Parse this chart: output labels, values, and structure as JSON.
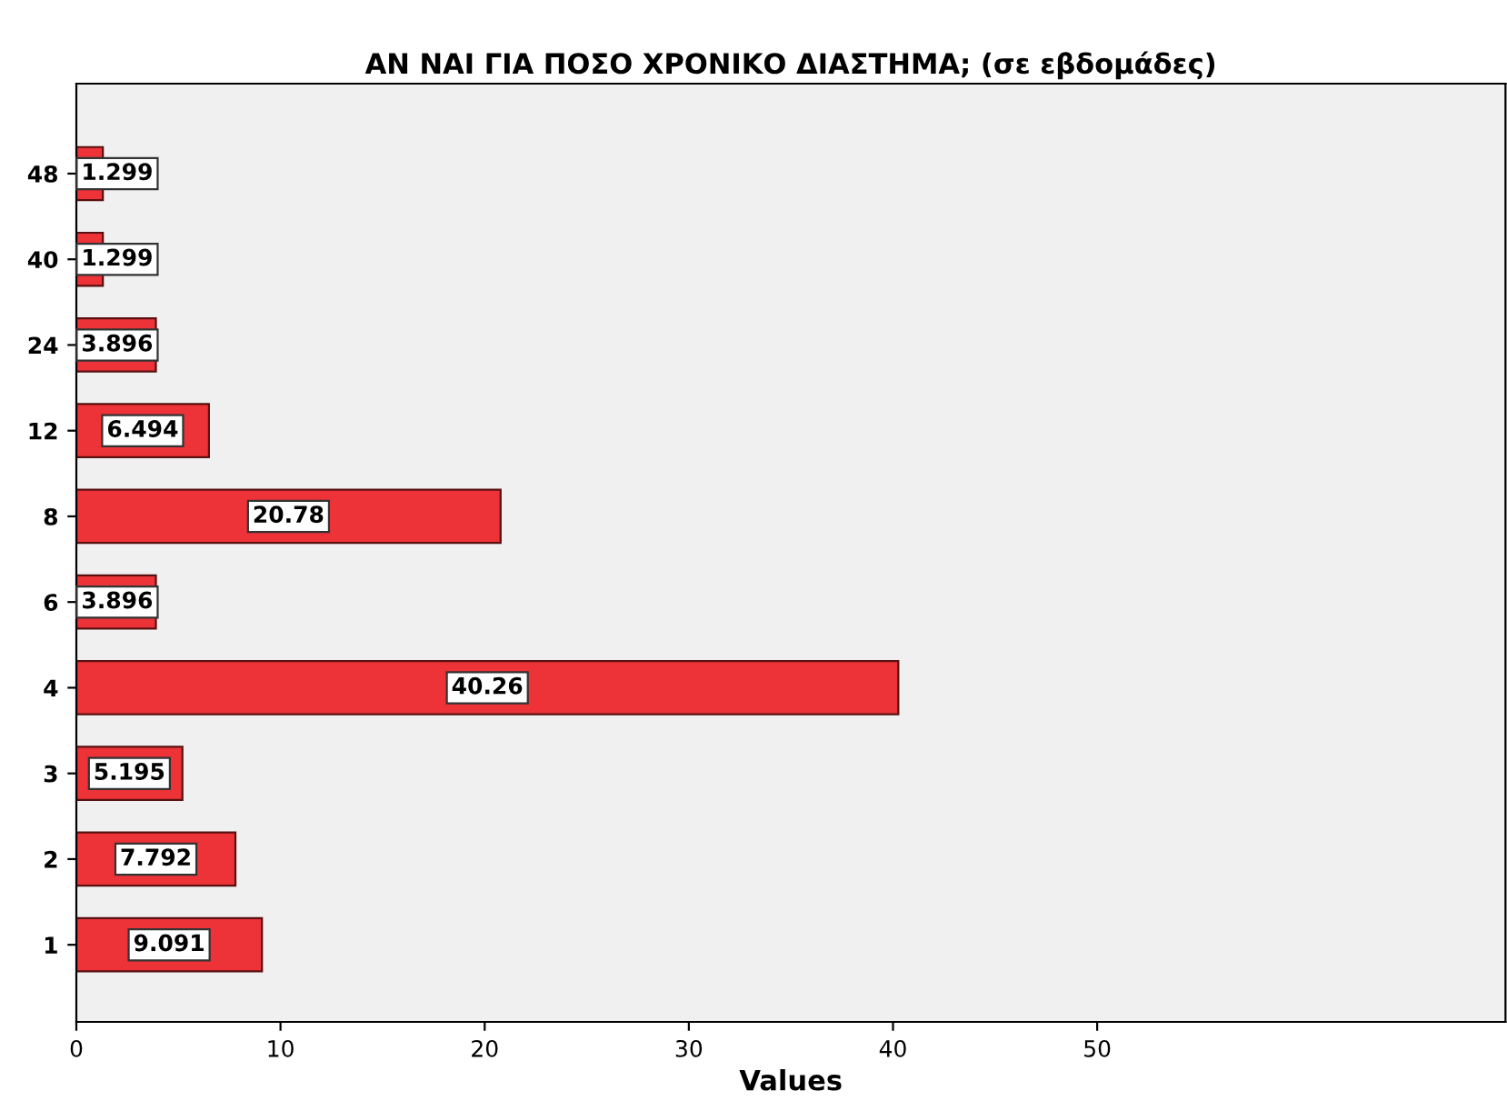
{
  "chart_data": {
    "type": "bar",
    "orientation": "horizontal",
    "title": "ΑΝ ΝΑΙ ΓΙΑ ΠΟΣΟ ΧΡΟΝΙΚΟ ΔΙΑΣΤΗΜΑ; (σε εβδομάδες)",
    "xlabel": "Values",
    "categories": [
      "48",
      "40",
      "24",
      "12",
      "8",
      "6",
      "4",
      "3",
      "2",
      "1"
    ],
    "values": [
      1.299,
      1.299,
      3.896,
      6.494,
      20.78,
      3.896,
      40.26,
      5.195,
      7.792,
      9.091
    ],
    "color": "#ee3338",
    "xlim": [
      0,
      70
    ],
    "xticks": [
      0,
      10,
      20,
      30,
      40,
      50
    ],
    "data_labels": true,
    "grid": false,
    "legend": false
  }
}
